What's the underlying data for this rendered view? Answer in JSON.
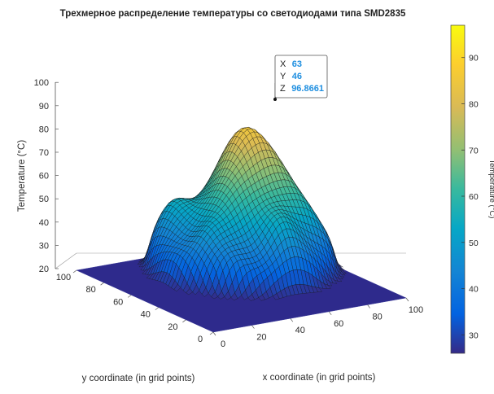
{
  "chart_data": {
    "type": "surface",
    "title": "Трехмерное распределение температуры со  светодиодами типа SMD2835",
    "xlabel": "x coordinate (in grid points)",
    "ylabel": "y coordinate (in grid points)",
    "zlabel": "Temperature (°C)",
    "xlim": [
      0,
      100
    ],
    "ylim": [
      0,
      100
    ],
    "zlim": [
      20,
      100
    ],
    "x_ticks": [
      "0",
      "20",
      "40",
      "60",
      "80",
      "100"
    ],
    "y_ticks": [
      "0",
      "20",
      "40",
      "60",
      "80",
      "100"
    ],
    "z_ticks": [
      "20",
      "30",
      "40",
      "50",
      "60",
      "70",
      "80",
      "90",
      "100"
    ],
    "colormap": "parula",
    "colorbar": {
      "label": "Temperature (°C)",
      "range": [
        26,
        97
      ],
      "ticks": [
        "30",
        "40",
        "50",
        "60",
        "70",
        "80",
        "90"
      ]
    },
    "surface_model": {
      "base_temperature": 26,
      "plateau_radius": 40,
      "peak": {
        "x": 63,
        "y": 46,
        "z": 96.8661
      }
    },
    "data_tip": {
      "x_label": "X",
      "x_value": "63",
      "y_label": "Y",
      "y_value": "46",
      "z_label": "Z",
      "z_value": "96.8661"
    }
  }
}
